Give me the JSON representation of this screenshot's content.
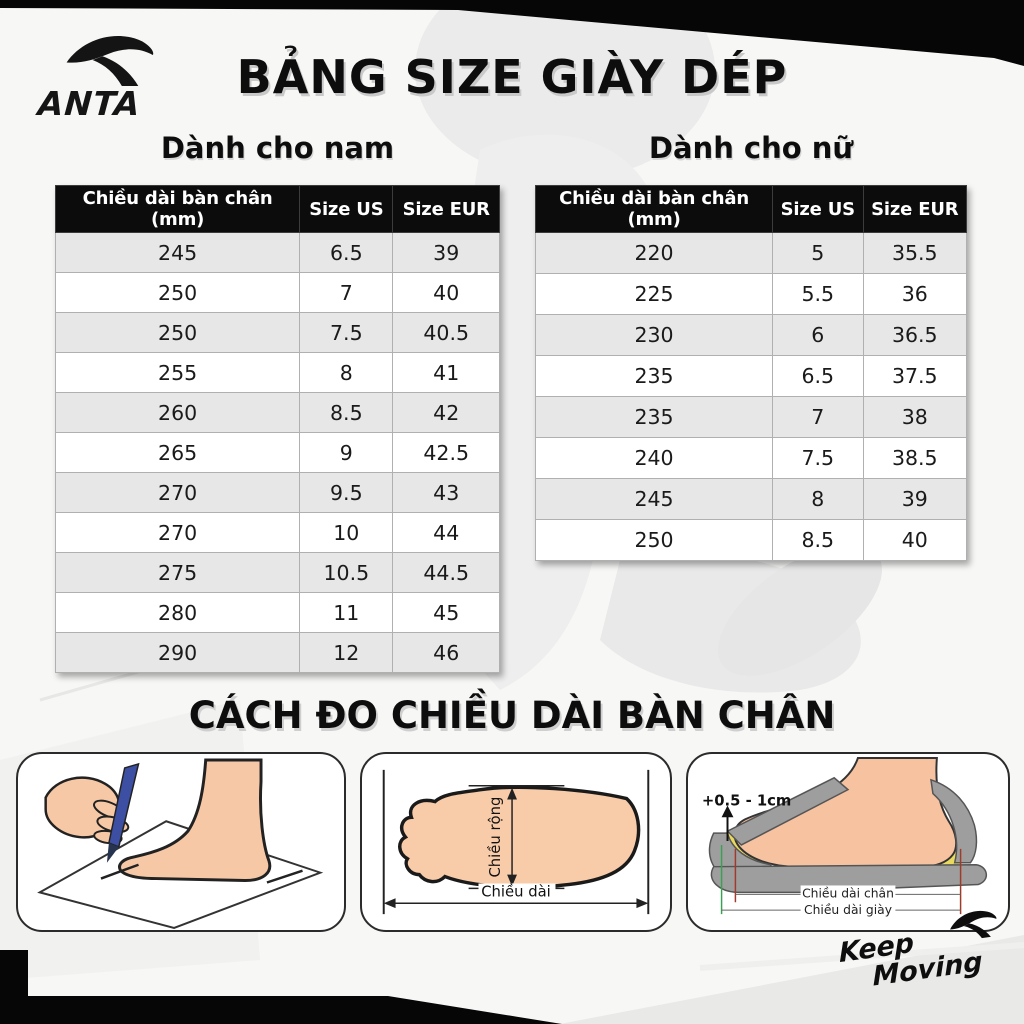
{
  "brand": {
    "name": "ANTA",
    "slogan_line1": "Keep",
    "slogan_line2": "Moving"
  },
  "page_title": "BẢNG SIZE GIÀY DÉP",
  "size_tables": {
    "men": {
      "title": "Dành cho nam",
      "headers": [
        "Chiều dài bàn chân (mm)",
        "Size US",
        "Size EUR"
      ],
      "rows": [
        [
          "245",
          "6.5",
          "39"
        ],
        [
          "250",
          "7",
          "40"
        ],
        [
          "250",
          "7.5",
          "40.5"
        ],
        [
          "255",
          "8",
          "41"
        ],
        [
          "260",
          "8.5",
          "42"
        ],
        [
          "265",
          "9",
          "42.5"
        ],
        [
          "270",
          "9.5",
          "43"
        ],
        [
          "270",
          "10",
          "44"
        ],
        [
          "275",
          "10.5",
          "44.5"
        ],
        [
          "280",
          "11",
          "45"
        ],
        [
          "290",
          "12",
          "46"
        ]
      ]
    },
    "women": {
      "title": "Dành cho nữ",
      "headers": [
        "Chiều dài bàn chân (mm)",
        "Size US",
        "Size EUR"
      ],
      "rows": [
        [
          "220",
          "5",
          "35.5"
        ],
        [
          "225",
          "5.5",
          "36"
        ],
        [
          "230",
          "6",
          "36.5"
        ],
        [
          "235",
          "6.5",
          "37.5"
        ],
        [
          "235",
          "7",
          "38"
        ],
        [
          "240",
          "7.5",
          "38.5"
        ],
        [
          "245",
          "8",
          "39"
        ],
        [
          "250",
          "8.5",
          "40"
        ]
      ]
    }
  },
  "measure_section": {
    "title": "CÁCH ĐO CHIỀU DÀI BÀN CHÂN",
    "foot_width_label": "Chiều rộng",
    "foot_length_label": "Chiều dài",
    "allowance_label": "+0.5 - 1cm",
    "foot_len_label": "Chiều dài chân",
    "shoe_len_label": "Chiều dài giày"
  },
  "colors": {
    "table_header_bg": "#0c0c0c",
    "table_row_alt": "#e7e7e7",
    "skin": "#f7c8a6",
    "pen_blue": "#3c4fa2",
    "shoe_gray": "#9e9e9e",
    "insole_yellow": "#ead95f",
    "measure_green": "#3aa055",
    "measure_red": "#a03a2a"
  }
}
